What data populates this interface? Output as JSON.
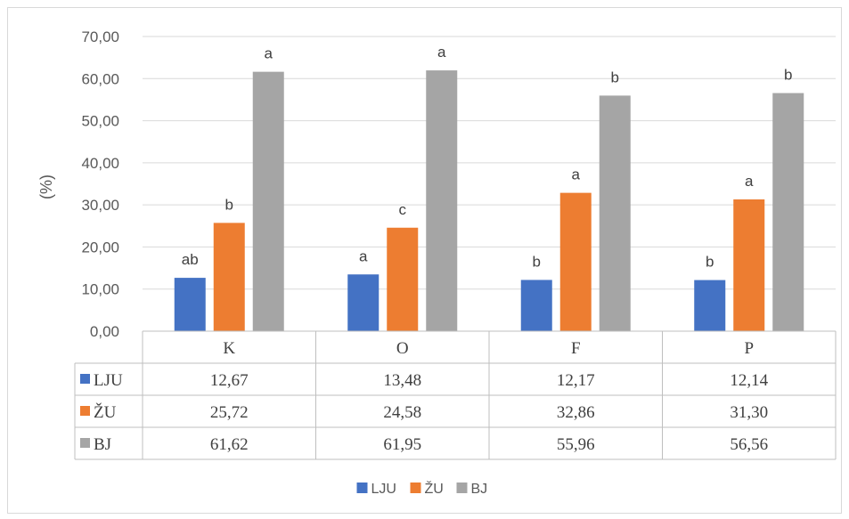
{
  "chart_data": {
    "type": "bar",
    "categories": [
      "K",
      "O",
      "F",
      "P"
    ],
    "series": [
      {
        "name": "LJU",
        "color": "#4472C4",
        "values": [
          12.67,
          13.48,
          12.17,
          12.14
        ],
        "value_labels": [
          "12,67",
          "13,48",
          "12,17",
          "12,14"
        ],
        "letters": [
          "ab",
          "a",
          "b",
          "b"
        ]
      },
      {
        "name": "ŽU",
        "color": "#ED7D31",
        "values": [
          25.72,
          24.58,
          32.86,
          31.3
        ],
        "value_labels": [
          "25,72",
          "24,58",
          "32,86",
          "31,30"
        ],
        "letters": [
          "b",
          "c",
          "a",
          "a"
        ]
      },
      {
        "name": "BJ",
        "color": "#A5A5A5",
        "values": [
          61.62,
          61.95,
          55.96,
          56.56
        ],
        "value_labels": [
          "61,62",
          "61,95",
          "55,96",
          "56,56"
        ],
        "letters": [
          "a",
          "a",
          "b",
          "b"
        ]
      }
    ],
    "ylabel": "(%)",
    "ylim": [
      0,
      70
    ],
    "yticks": [
      "0,00",
      "10,00",
      "20,00",
      "30,00",
      "40,00",
      "50,00",
      "60,00",
      "70,00"
    ],
    "grid": true,
    "legend_position": "bottom",
    "data_table": true
  }
}
